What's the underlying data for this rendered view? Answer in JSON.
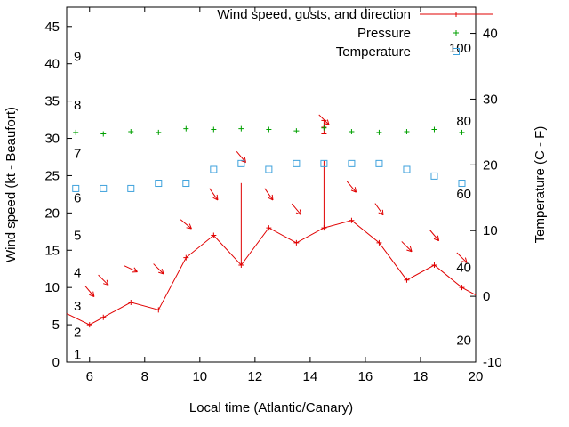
{
  "chart_data": {
    "type": "line",
    "xlabel": "Local time (Atlantic/Canary)",
    "ylabel_left": "Wind speed (kt - Beaufort)",
    "ylabel_right": "Temperature (C - F)",
    "xlim": [
      5.17,
      20
    ],
    "x_ticks": [
      6,
      8,
      10,
      12,
      14,
      16,
      18,
      20
    ],
    "ylim_left": [
      0,
      47.6
    ],
    "y_ticks_left": [
      0,
      5,
      10,
      15,
      20,
      25,
      30,
      35,
      40,
      45
    ],
    "ylim_right": [
      -10,
      44
    ],
    "y_ticks_right": [
      -10,
      0,
      10,
      20,
      30,
      40
    ],
    "beaufort_labels": [
      {
        "label": "1",
        "kt": 1
      },
      {
        "label": "2",
        "kt": 4
      },
      {
        "label": "3",
        "kt": 7.5
      },
      {
        "label": "4",
        "kt": 12
      },
      {
        "label": "5",
        "kt": 17
      },
      {
        "label": "6",
        "kt": 22
      },
      {
        "label": "7",
        "kt": 28
      },
      {
        "label": "8",
        "kt": 34.5
      },
      {
        "label": "9",
        "kt": 41
      }
    ],
    "fahrenheit_labels": [
      {
        "label": "20",
        "c": -6.7
      },
      {
        "label": "40",
        "c": 4.4
      },
      {
        "label": "60",
        "c": 15.6
      },
      {
        "label": "80",
        "c": 26.7
      },
      {
        "label": "100",
        "c": 37.8
      }
    ],
    "legend": [
      {
        "label": "Wind speed, gusts, and direction",
        "style": "line-plus",
        "color": "#e00000"
      },
      {
        "label": "Pressure",
        "style": "plus",
        "color": "#00a000"
      },
      {
        "label": "Temperature",
        "style": "square",
        "color": "#3fa2dc"
      }
    ],
    "series": [
      {
        "name": "wind_speed",
        "axis": "left",
        "color": "#e00000",
        "x": [
          5.17,
          6,
          6.5,
          7.5,
          8.5,
          9.5,
          10.5,
          11.5,
          12.5,
          13.5,
          14.5,
          15.5,
          16.5,
          17.5,
          18.5,
          19.5,
          20
        ],
        "y": [
          6.5,
          5,
          6,
          8,
          7,
          14,
          17,
          13,
          18,
          16,
          18,
          19,
          16,
          11,
          13,
          10,
          9
        ]
      },
      {
        "name": "gusts",
        "axis": "left",
        "color": "#e00000",
        "bars": [
          {
            "x": 11.5,
            "from": 13,
            "to": 24
          },
          {
            "x": 14.5,
            "from": 18,
            "to": 27
          }
        ],
        "capped": [
          {
            "x": 14.5,
            "from": 30.6,
            "to": 32.4,
            "mid": 31.5
          }
        ]
      },
      {
        "name": "wind_direction_arrows",
        "axis": "left",
        "color": "#e00000",
        "arrows": [
          {
            "x": 6,
            "y": 9.5,
            "angle": 50
          },
          {
            "x": 6.5,
            "y": 11,
            "angle": 45
          },
          {
            "x": 7.5,
            "y": 12.5,
            "angle": 25
          },
          {
            "x": 8.5,
            "y": 12.5,
            "angle": 45
          },
          {
            "x": 9.5,
            "y": 18.5,
            "angle": 40
          },
          {
            "x": 10.5,
            "y": 22.5,
            "angle": 55
          },
          {
            "x": 11.5,
            "y": 27.5,
            "angle": 50
          },
          {
            "x": 12.5,
            "y": 22.5,
            "angle": 55
          },
          {
            "x": 13.5,
            "y": 20.5,
            "angle": 50
          },
          {
            "x": 14.5,
            "y": 32.5,
            "angle": 45
          },
          {
            "x": 15.5,
            "y": 23.5,
            "angle": 50
          },
          {
            "x": 16.5,
            "y": 20.5,
            "angle": 55
          },
          {
            "x": 17.5,
            "y": 15.5,
            "angle": 45
          },
          {
            "x": 18.5,
            "y": 17,
            "angle": 50
          },
          {
            "x": 19.5,
            "y": 14,
            "angle": 45
          }
        ]
      },
      {
        "name": "pressure",
        "axis": "left",
        "color": "#00a000",
        "x": [
          5.5,
          6.5,
          7.5,
          8.5,
          9.5,
          10.5,
          11.5,
          12.5,
          13.5,
          14.5,
          15.5,
          16.5,
          17.5,
          18.5,
          19.5
        ],
        "y": [
          30.8,
          30.6,
          30.9,
          30.8,
          31.3,
          31.2,
          31.3,
          31.2,
          31.0,
          31.4,
          30.9,
          30.8,
          30.9,
          31.2,
          30.8
        ]
      },
      {
        "name": "temperature",
        "axis": "right",
        "color": "#3fa2dc",
        "x": [
          5.5,
          6.5,
          7.5,
          8.5,
          9.5,
          10.5,
          11.5,
          12.5,
          13.5,
          14.5,
          15.5,
          16.5,
          17.5,
          18.5,
          19.5
        ],
        "y": [
          16.4,
          16.4,
          16.4,
          17.2,
          17.2,
          19.3,
          20.2,
          19.3,
          20.2,
          20.2,
          20.2,
          20.2,
          19.3,
          18.3,
          17.2
        ]
      }
    ]
  }
}
